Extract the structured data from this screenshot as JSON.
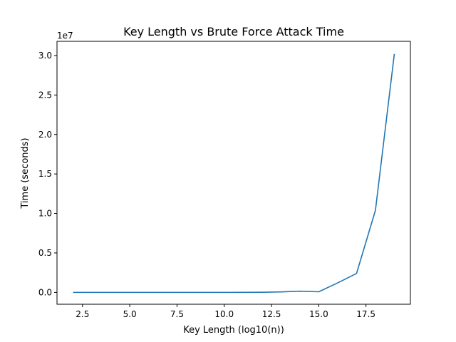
{
  "chart_data": {
    "type": "line",
    "title": "Key Length vs Brute Force Attack Time",
    "xlabel": "Key Length (log10(n))",
    "ylabel": "Time (seconds)",
    "y_offset_text": "1e7",
    "xlim": [
      1.15,
      19.85
    ],
    "ylim": [
      -1500000,
      31800000
    ],
    "x_ticks": [
      2.5,
      5.0,
      7.5,
      10.0,
      12.5,
      15.0,
      17.5
    ],
    "x_tick_labels": [
      "2.5",
      "5.0",
      "7.5",
      "10.0",
      "12.5",
      "15.0",
      "17.5"
    ],
    "y_ticks": [
      0,
      5000000,
      10000000,
      15000000,
      20000000,
      25000000,
      30000000
    ],
    "y_tick_labels": [
      "0.0",
      "0.5",
      "1.0",
      "1.5",
      "2.0",
      "2.5",
      "3.0"
    ],
    "grid": false,
    "series": [
      {
        "color": "#1f77b4",
        "x": [
          2,
          3,
          4,
          5,
          6,
          7,
          8,
          9,
          10,
          11,
          12,
          13,
          14,
          15,
          16,
          17,
          18,
          19
        ],
        "y": [
          0,
          0,
          0,
          0,
          0,
          0,
          0,
          0,
          0,
          3000,
          20000,
          60000,
          150000,
          80000,
          1200000,
          2400000,
          10400000,
          30200000
        ]
      }
    ]
  }
}
